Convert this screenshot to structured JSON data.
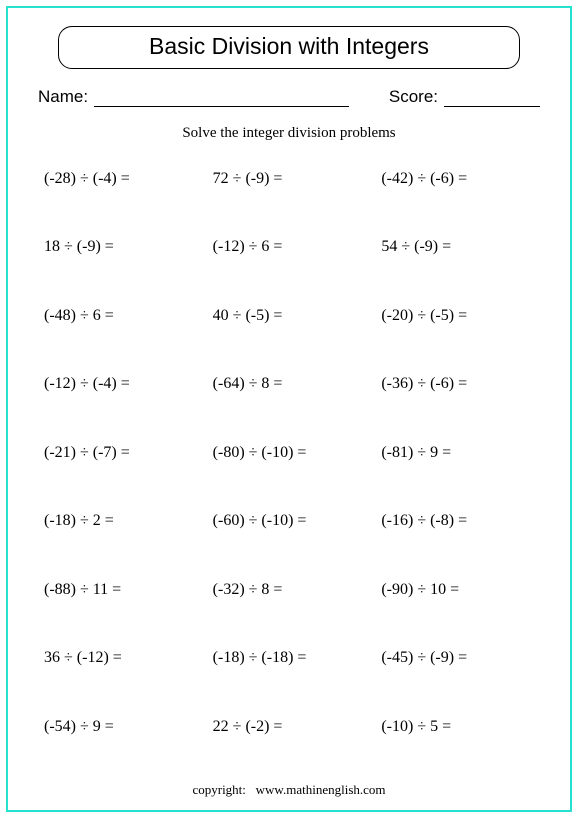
{
  "title": "Basic Division with Integers",
  "name_label": "Name:",
  "score_label": "Score:",
  "instructions": "Solve the integer division problems",
  "problems": [
    [
      {
        "a": -28,
        "b": -4
      },
      {
        "a": 72,
        "b": -9
      },
      {
        "a": -42,
        "b": -6
      }
    ],
    [
      {
        "a": 18,
        "b": -9
      },
      {
        "a": -12,
        "b": 6
      },
      {
        "a": 54,
        "b": -9
      }
    ],
    [
      {
        "a": -48,
        "b": 6
      },
      {
        "a": 40,
        "b": -5
      },
      {
        "a": -20,
        "b": -5
      }
    ],
    [
      {
        "a": -12,
        "b": -4
      },
      {
        "a": -64,
        "b": 8
      },
      {
        "a": -36,
        "b": -6
      }
    ],
    [
      {
        "a": -21,
        "b": -7
      },
      {
        "a": -80,
        "b": -10
      },
      {
        "a": -81,
        "b": 9
      }
    ],
    [
      {
        "a": -18,
        "b": 2
      },
      {
        "a": -60,
        "b": -10
      },
      {
        "a": -16,
        "b": -8
      }
    ],
    [
      {
        "a": -88,
        "b": 11
      },
      {
        "a": -32,
        "b": 8
      },
      {
        "a": -90,
        "b": 10
      }
    ],
    [
      {
        "a": 36,
        "b": -12
      },
      {
        "a": -18,
        "b": -18
      },
      {
        "a": -45,
        "b": -9
      }
    ],
    [
      {
        "a": -54,
        "b": 9
      },
      {
        "a": 22,
        "b": -2
      },
      {
        "a": -10,
        "b": 5
      }
    ]
  ],
  "style": {
    "border_color": "#26e0d0",
    "text_color": "#000000",
    "background_color": "#ffffff",
    "title_font": "Comic Sans MS",
    "body_font": "Times New Roman",
    "title_fontsize": 23,
    "meta_fontsize": 17,
    "instructions_fontsize": 15,
    "problem_fontsize": 16,
    "footer_fontsize": 13,
    "division_sign": "÷",
    "columns": 3,
    "rows": 9
  },
  "footer": {
    "label": "copyright:",
    "site": "www.mathinenglish.com"
  }
}
